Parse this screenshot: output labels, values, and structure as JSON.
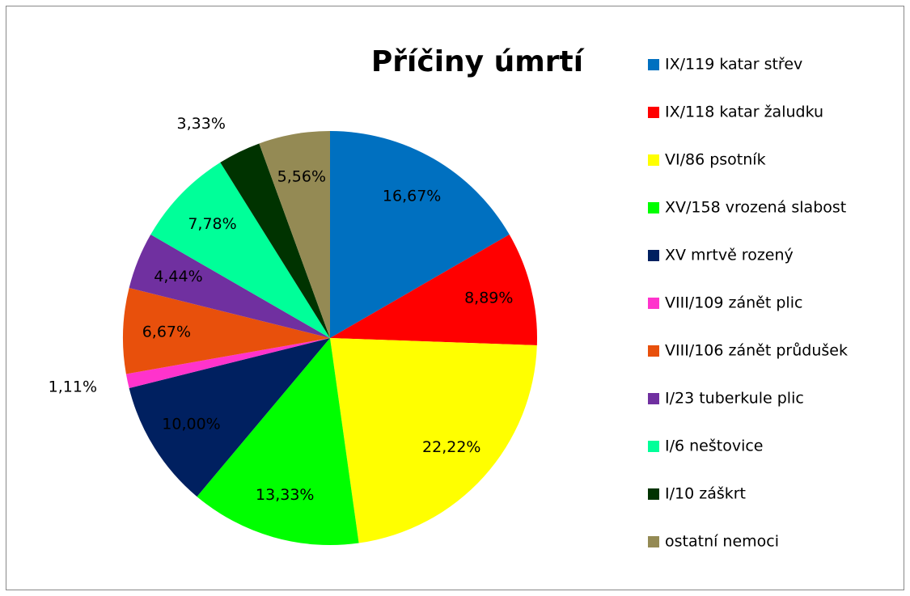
{
  "chart_data": {
    "type": "pie",
    "title": "Příčiny úmrtí",
    "categories": [
      "IX/119 katar střev",
      "IX/118 katar žaludku",
      "VI/86 psotník",
      "XV/158 vrozená slabost",
      "XV mrtvě rozený",
      "VIII/109 zánět plic",
      "VIII/106 zánět průdušek",
      "I/23 tuberkule plic",
      "I/6 neštovice",
      "I/10 záškrt",
      "ostatní nemoci"
    ],
    "values": [
      16.67,
      8.89,
      22.22,
      13.33,
      10.0,
      1.11,
      6.67,
      4.44,
      7.78,
      3.33,
      5.56
    ],
    "value_labels": [
      "16,67%",
      "8,89%",
      "22,22%",
      "13,33%",
      "10,00%",
      "1,11%",
      "6,67%",
      "4,44%",
      "7,78%",
      "3,33%",
      "5,56%"
    ],
    "colors": [
      "#0070c0",
      "#ff0000",
      "#ffff00",
      "#00ff00",
      "#002060",
      "#ff33cc",
      "#e8500c",
      "#7030a0",
      "#00ff99",
      "#003300",
      "#948a54"
    ],
    "legend": "right"
  }
}
